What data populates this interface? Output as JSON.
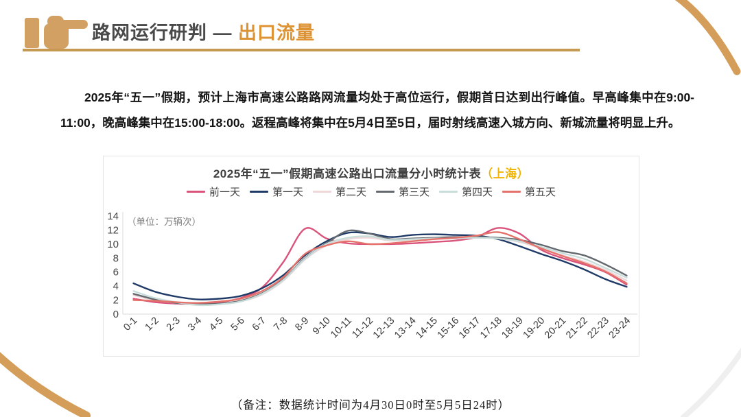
{
  "header": {
    "title_main": "路网运行研判 —",
    "title_accent": "出口流量"
  },
  "summary": {
    "text": "2025年“五一”假期，预计上海市高速公路路网流量均处于高位运行，假期首日达到出行峰值。早高峰集中在9:00-11:00，晚高峰集中在15:00-18:00。返程高峰将集中在5月4日至5日，届时射线高速入城方向、新城流量将明显上升。"
  },
  "chart_data": {
    "type": "line",
    "title": "2025年“五一”假期高速公路出口流量分小时统计表",
    "title_suffix": "（上海）",
    "title_suffix_color": "#f0b400",
    "unit_label": "（单位：万辆次）",
    "ylabel": "万辆次",
    "ylim": [
      0,
      14
    ],
    "ytick_step": 2,
    "grid": false,
    "legend_position": "top",
    "smooth": true,
    "categories": [
      "0-1",
      "1-2",
      "2-3",
      "3-4",
      "4-5",
      "5-6",
      "6-7",
      "7-8",
      "8-9",
      "9-10",
      "10-11",
      "11-12",
      "12-13",
      "13-14",
      "14-15",
      "15-16",
      "16-17",
      "17-18",
      "18-19",
      "19-20",
      "20-21",
      "21-22",
      "22-23",
      "23-24"
    ],
    "series": [
      {
        "name": "前一天",
        "color": "#d9537b",
        "values": [
          2.2,
          1.7,
          1.5,
          1.4,
          1.7,
          2.3,
          3.8,
          7.5,
          12.2,
          10.8,
          10.1,
          10.0,
          10.0,
          10.1,
          10.3,
          10.5,
          11.0,
          12.3,
          11.5,
          9.2,
          8.0,
          7.1,
          6.0,
          4.2
        ]
      },
      {
        "name": "第一天",
        "color": "#1f3a66",
        "values": [
          4.4,
          3.2,
          2.5,
          2.1,
          2.2,
          2.6,
          3.7,
          5.6,
          8.4,
          10.4,
          11.6,
          11.5,
          11.0,
          11.3,
          11.4,
          11.3,
          11.2,
          10.7,
          9.7,
          8.6,
          7.6,
          6.4,
          5.0,
          3.9
        ]
      },
      {
        "name": "第二天",
        "color": "#eed6d9",
        "values": [
          2.7,
          2.0,
          1.6,
          1.3,
          1.4,
          1.8,
          2.8,
          4.8,
          7.8,
          9.8,
          10.7,
          10.9,
          10.5,
          10.6,
          10.7,
          10.8,
          10.9,
          10.8,
          10.3,
          9.4,
          8.4,
          7.5,
          6.3,
          4.8
        ]
      },
      {
        "name": "第三天",
        "color": "#64696f",
        "values": [
          2.9,
          2.1,
          1.6,
          1.4,
          1.5,
          1.9,
          3.0,
          5.0,
          8.0,
          10.1,
          11.9,
          11.5,
          10.7,
          10.8,
          10.9,
          11.0,
          11.0,
          10.9,
          10.6,
          9.9,
          9.0,
          8.4,
          7.1,
          5.5
        ]
      },
      {
        "name": "第四天",
        "color": "#c9dedb",
        "values": [
          3.3,
          2.3,
          1.7,
          1.3,
          1.4,
          1.8,
          2.9,
          4.9,
          7.9,
          10.0,
          10.9,
          11.1,
          10.6,
          10.7,
          10.8,
          10.8,
          10.9,
          10.8,
          10.4,
          9.6,
          8.7,
          7.9,
          6.6,
          5.2
        ]
      },
      {
        "name": "第五天",
        "color": "#e5726a",
        "values": [
          2.0,
          1.9,
          1.7,
          1.6,
          1.8,
          2.2,
          3.3,
          5.3,
          8.6,
          9.8,
          10.4,
          10.0,
          10.1,
          10.4,
          10.7,
          10.9,
          11.2,
          11.7,
          10.7,
          9.4,
          8.3,
          7.3,
          6.1,
          4.4
        ]
      }
    ]
  },
  "footnote": {
    "text": "（备注：数据统计时间为4月30日0时至5月5日24时）"
  }
}
